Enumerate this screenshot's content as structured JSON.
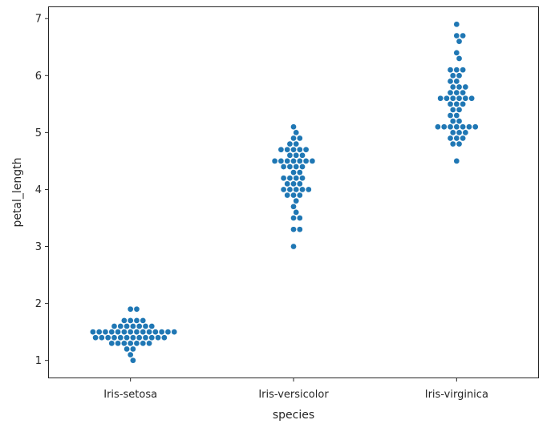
{
  "chart_data": {
    "type": "scatter",
    "subtype": "swarm",
    "title": "",
    "xlabel": "species",
    "ylabel": "petal_length",
    "categories": [
      "Iris-setosa",
      "Iris-versicolor",
      "Iris-virginica"
    ],
    "ylim": [
      0.7,
      7.2
    ],
    "yticks": [
      1,
      2,
      3,
      4,
      5,
      6,
      7
    ],
    "grid": false,
    "legend": "none",
    "point_color": "#1f77b4",
    "series": [
      {
        "category": "Iris-setosa",
        "values": [
          1.4,
          1.4,
          1.3,
          1.5,
          1.4,
          1.7,
          1.4,
          1.5,
          1.4,
          1.5,
          1.5,
          1.6,
          1.4,
          1.1,
          1.2,
          1.5,
          1.3,
          1.4,
          1.7,
          1.5,
          1.7,
          1.5,
          1.0,
          1.7,
          1.9,
          1.6,
          1.6,
          1.5,
          1.4,
          1.6,
          1.6,
          1.5,
          1.5,
          1.4,
          1.5,
          1.2,
          1.3,
          1.5,
          1.3,
          1.5,
          1.3,
          1.3,
          1.3,
          1.6,
          1.9,
          1.4,
          1.6,
          1.4,
          1.5,
          1.4
        ]
      },
      {
        "category": "Iris-versicolor",
        "values": [
          4.7,
          4.5,
          4.9,
          4.0,
          4.6,
          4.5,
          4.7,
          3.3,
          4.6,
          3.9,
          3.5,
          4.2,
          4.0,
          4.7,
          3.6,
          4.4,
          4.5,
          4.1,
          4.5,
          3.9,
          4.8,
          4.0,
          4.9,
          4.7,
          4.3,
          4.4,
          4.8,
          5.0,
          4.5,
          3.5,
          3.8,
          3.7,
          3.9,
          5.1,
          4.5,
          4.5,
          4.7,
          4.4,
          4.1,
          4.0,
          4.4,
          4.6,
          4.0,
          3.3,
          4.2,
          4.2,
          4.2,
          4.3,
          3.0,
          4.1
        ]
      },
      {
        "category": "Iris-virginica",
        "values": [
          6.0,
          5.1,
          5.9,
          5.6,
          5.8,
          6.6,
          4.5,
          6.3,
          5.8,
          6.1,
          5.1,
          5.3,
          5.5,
          5.0,
          5.1,
          5.3,
          5.5,
          6.7,
          6.9,
          5.0,
          5.7,
          4.9,
          6.7,
          4.9,
          5.7,
          6.0,
          4.8,
          4.9,
          5.6,
          5.8,
          6.1,
          6.4,
          5.6,
          5.1,
          5.6,
          6.1,
          5.6,
          5.5,
          4.8,
          5.4,
          5.6,
          5.1,
          5.1,
          5.9,
          5.7,
          5.2,
          5.0,
          5.2,
          5.4,
          5.1
        ]
      }
    ]
  }
}
